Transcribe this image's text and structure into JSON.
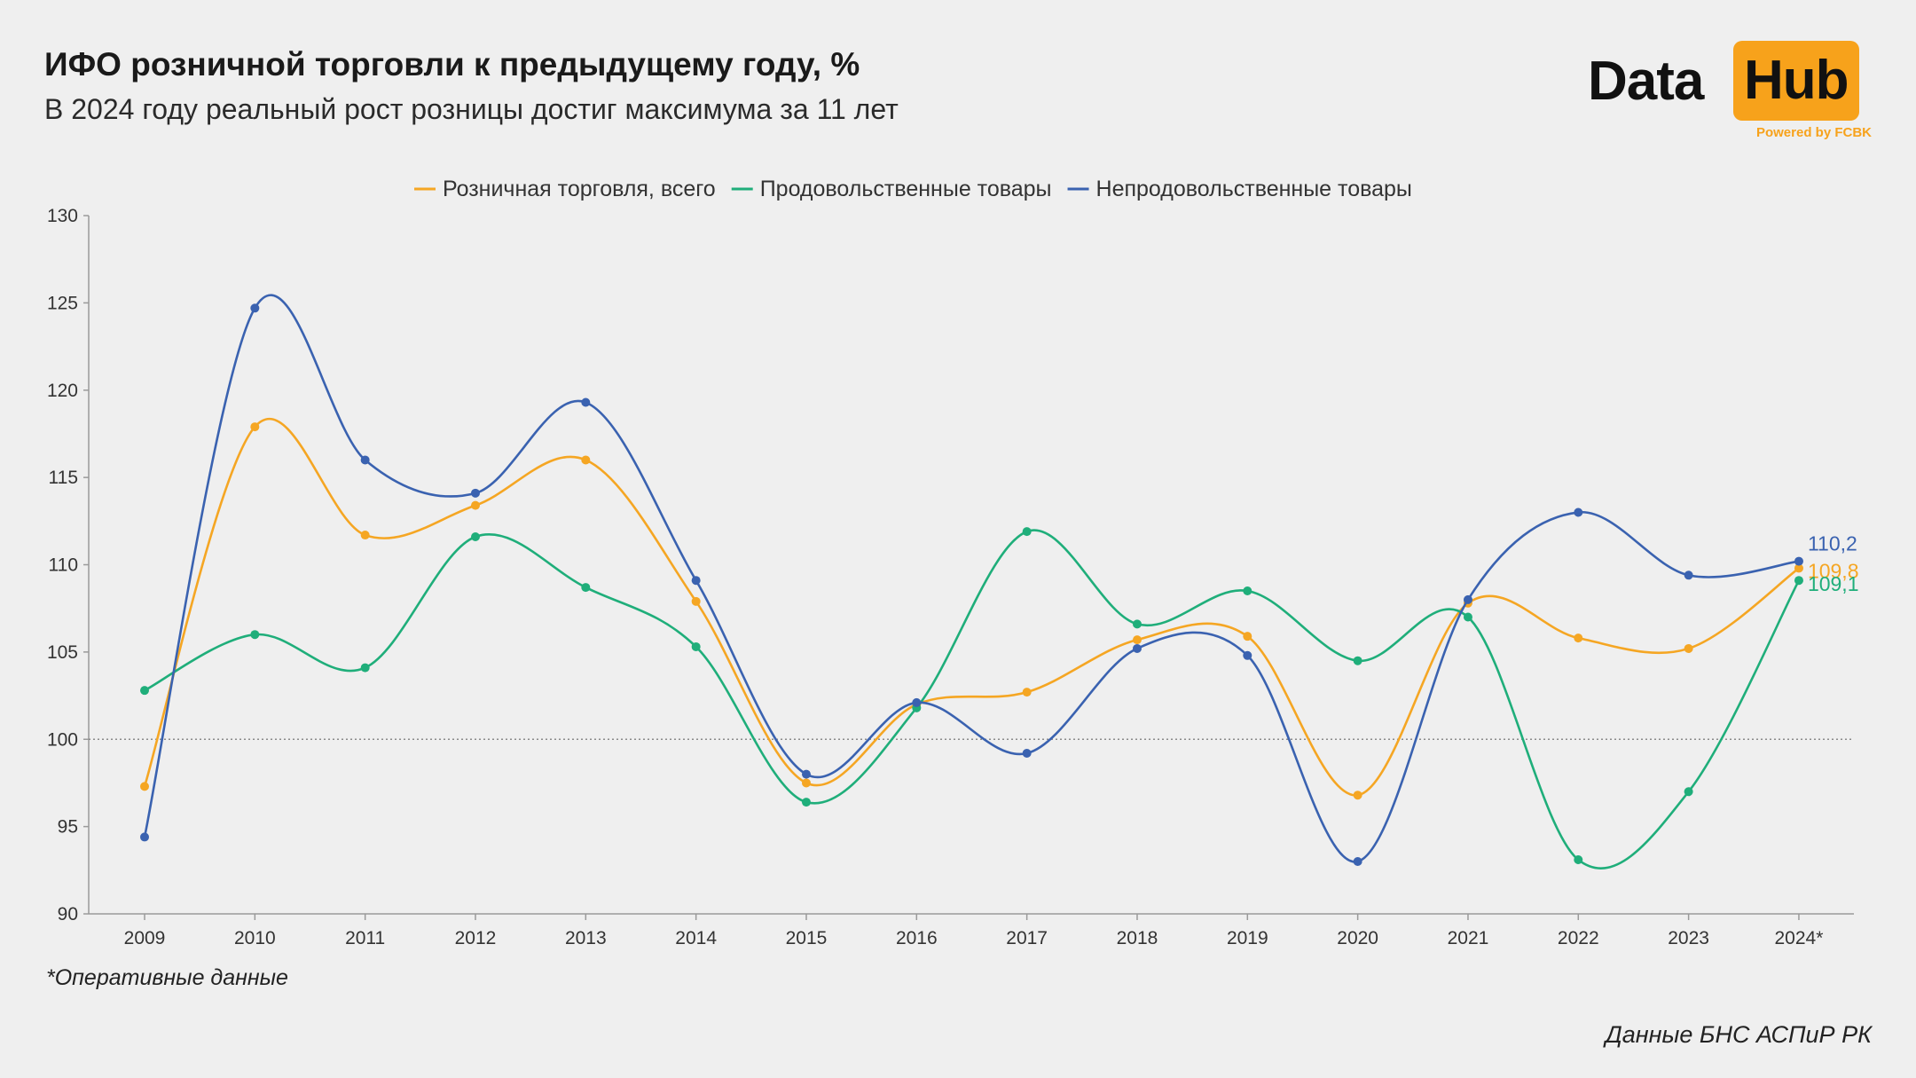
{
  "header": {
    "title": "ИФО розничной торговли к предыдущему году, %",
    "subtitle": "В 2024 году реальный рост розницы достиг максимума за 11 лет"
  },
  "logo": {
    "left_text": "Data",
    "box_text": "Hub",
    "tagline": "Powered by FCBK",
    "accent_color": "#f7a21b"
  },
  "footnote": "*Оперативные данные",
  "source": "Данные БНС АСПиР РК",
  "chart_data": {
    "type": "line",
    "title": "",
    "xlabel": "",
    "ylabel": "",
    "categories": [
      "2009",
      "2010",
      "2011",
      "2012",
      "2013",
      "2014",
      "2015",
      "2016",
      "2017",
      "2018",
      "2019",
      "2020",
      "2021",
      "2022",
      "2023",
      "2024*"
    ],
    "ylim": [
      90,
      130
    ],
    "yticks": [
      "90",
      "95",
      "100",
      "105",
      "110",
      "115",
      "120",
      "125",
      "130"
    ],
    "reference_line": 100,
    "legend_position": "top-center",
    "grid": false,
    "series": [
      {
        "name": "Розничная торговля, всего",
        "color": "#f5a623",
        "values": [
          97.3,
          117.9,
          111.7,
          113.4,
          116.0,
          107.9,
          97.5,
          102.0,
          102.7,
          105.7,
          105.9,
          96.8,
          107.8,
          105.8,
          105.2,
          109.8
        ],
        "end_label": "109,8"
      },
      {
        "name": "Продовольственные товары",
        "color": "#1fae7a",
        "values": [
          102.8,
          106.0,
          104.1,
          111.6,
          108.7,
          105.3,
          96.4,
          101.8,
          111.9,
          106.6,
          108.5,
          104.5,
          107.0,
          93.1,
          97.0,
          109.1
        ],
        "end_label": "109,1"
      },
      {
        "name": "Непродовольственные товары",
        "color": "#3a62b0",
        "values": [
          94.4,
          124.7,
          116.0,
          114.1,
          119.3,
          109.1,
          98.0,
          102.1,
          99.2,
          105.2,
          104.8,
          93.0,
          108.0,
          113.0,
          109.4,
          110.2
        ],
        "end_label": "110,2"
      }
    ]
  }
}
